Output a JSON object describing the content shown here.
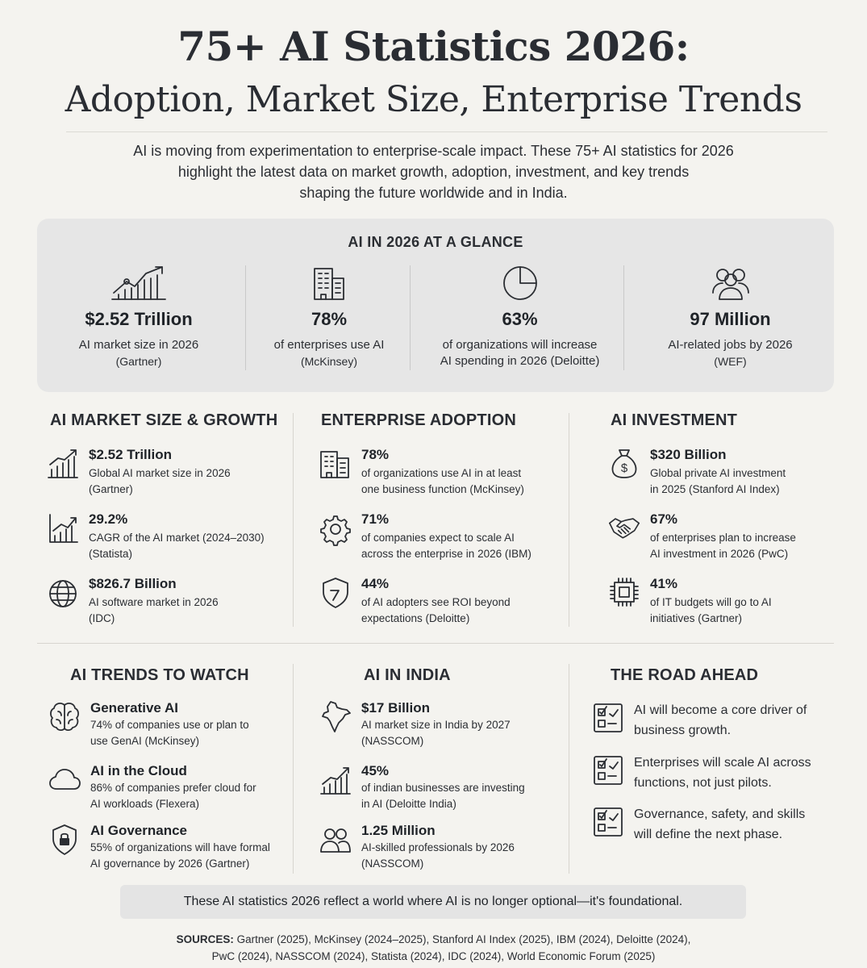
{
  "header": {
    "title_line1": "75+ AI Statistics 2026:",
    "title_line2": "Adoption, Market Size, Enterprise Trends",
    "intro": [
      "AI is moving from experimentation to enterprise-scale impact. These 75+ AI statistics for 2026",
      "highlight the latest data on market growth, adoption, investment, and key trends",
      "shaping the future worldwide and in India."
    ]
  },
  "glance": {
    "title": "AI IN 2026 AT A GLANCE",
    "items": [
      {
        "icon": "growth-chart-icon",
        "value": "$2.52 Trillion",
        "label1": "AI market size in 2026",
        "label2": "",
        "source": "(Gartner)"
      },
      {
        "icon": "buildings-icon",
        "value": "78%",
        "label1": "of enterprises use AI",
        "label2": "",
        "source": "(McKinsey)"
      },
      {
        "icon": "pie-chart-icon",
        "value": "63%",
        "label1": "of organizations will increase",
        "label2": "AI spending in 2026 (Deloitte)",
        "source": ""
      },
      {
        "icon": "people-icon",
        "value": "97 Million",
        "label1": "AI-related jobs by 2026",
        "label2": "",
        "source": "(WEF)"
      }
    ]
  },
  "market": {
    "title": "AI MARKET SIZE & GROWTH",
    "items": [
      {
        "icon": "bar-growth-icon",
        "value": "$2.52 Trillion",
        "lines": [
          "Global AI market size in 2026",
          "(Gartner)"
        ]
      },
      {
        "icon": "trend-chart-icon",
        "value": "29.2%",
        "lines": [
          "CAGR of the AI market (2024–2030)",
          "(Statista)"
        ]
      },
      {
        "icon": "globe-icon",
        "value": "$826.7 Billion",
        "lines": [
          "AI software market in 2026",
          "(IDC)"
        ]
      }
    ]
  },
  "adoption": {
    "title": "ENTERPRISE ADOPTION",
    "items": [
      {
        "icon": "office-building-icon",
        "value": "78%",
        "lines": [
          "of organizations use AI in at least",
          "one business function (McKinsey)"
        ]
      },
      {
        "icon": "gear-icon",
        "value": "71%",
        "lines": [
          "of companies expect to scale AI",
          "across the enterprise in 2026 (IBM)"
        ]
      },
      {
        "icon": "shield-icon",
        "value": "44%",
        "lines": [
          "of AI adopters see ROI beyond",
          "expectations (Deloitte)"
        ]
      }
    ]
  },
  "investment": {
    "title": "AI INVESTMENT",
    "items": [
      {
        "icon": "money-bag-icon",
        "value": "$320 Billion",
        "lines": [
          "Global private AI investment",
          "in 2025 (Stanford AI Index)"
        ]
      },
      {
        "icon": "handshake-icon",
        "value": "67%",
        "lines": [
          "of enterprises plan to increase",
          "AI investment in 2026 (PwC)"
        ]
      },
      {
        "icon": "chip-icon",
        "value": "41%",
        "lines": [
          "of IT budgets will go to AI",
          "initiatives (Gartner)"
        ]
      }
    ]
  },
  "trends": {
    "title": "AI TRENDS TO WATCH",
    "items": [
      {
        "icon": "brain-icon",
        "value": "Generative AI",
        "lines": [
          "74% of companies use or plan to",
          "use GenAI (McKinsey)"
        ]
      },
      {
        "icon": "cloud-icon",
        "value": "AI in the Cloud",
        "lines": [
          "86% of companies prefer cloud for",
          "AI workloads (Flexera)"
        ]
      },
      {
        "icon": "lock-shield-icon",
        "value": "AI Governance",
        "lines": [
          "55% of organizations will have formal",
          "AI governance by 2026 (Gartner)"
        ]
      }
    ]
  },
  "india": {
    "title": "AI IN INDIA",
    "items": [
      {
        "icon": "india-map-icon",
        "value": "$17 Billion",
        "lines": [
          "AI market size in India by 2027",
          "(NASSCOM)"
        ]
      },
      {
        "icon": "bar-growth-icon",
        "value": "45%",
        "lines": [
          "of indian businesses are investing",
          "in AI (Deloitte India)"
        ]
      },
      {
        "icon": "people-icon",
        "value": "1.25 Million",
        "lines": [
          "AI-skilled professionals by 2026",
          "(NASSCOM)"
        ]
      }
    ]
  },
  "road": {
    "title": "THE ROAD AHEAD",
    "items": [
      {
        "icon": "checklist-icon",
        "lines": [
          "AI will become a core driver of",
          "business growth."
        ]
      },
      {
        "icon": "checklist-icon",
        "lines": [
          "Enterprises will scale AI across",
          "functions, not just pilots."
        ]
      },
      {
        "icon": "checklist-icon",
        "lines": [
          "Governance, safety, and skills",
          "will define the next phase."
        ]
      }
    ]
  },
  "banner": "These AI statistics 2026 reflect a world where AI is no longer optional—it's foundational.",
  "sources": {
    "label": "SOURCES:",
    "line1": "Gartner (2025), McKinsey (2024–2025), Stanford AI Index (2025), IBM (2024), Deloitte (2024),",
    "line2": "PwC (2024), NASSCOM (2024), Statista (2024), IDC (2024), World Economic Forum (2025)"
  }
}
